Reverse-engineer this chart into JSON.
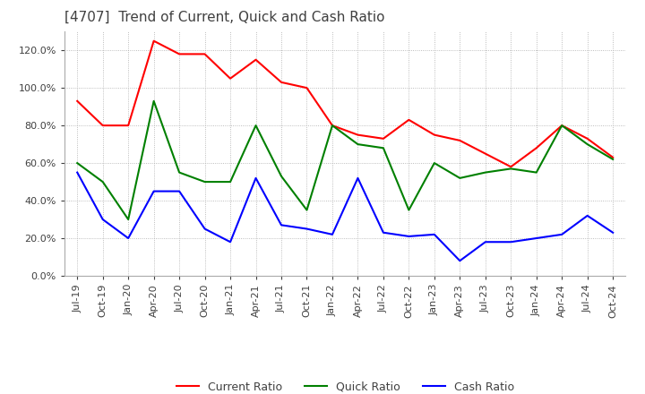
{
  "title": "[4707]  Trend of Current, Quick and Cash Ratio",
  "title_fontsize": 11,
  "title_color": "#404040",
  "background_color": "#ffffff",
  "plot_bg_color": "#ffffff",
  "grid_color": "#aaaaaa",
  "ylim": [
    0.0,
    1.3
  ],
  "yticks": [
    0.0,
    0.2,
    0.4,
    0.6,
    0.8,
    1.0,
    1.2
  ],
  "ytick_labels": [
    "0.0%",
    "20.0%",
    "40.0%",
    "60.0%",
    "80.0%",
    "100.0%",
    "120.0%"
  ],
  "x_labels": [
    "Jul-19",
    "Oct-19",
    "Jan-20",
    "Apr-20",
    "Jul-20",
    "Oct-20",
    "Jan-21",
    "Apr-21",
    "Jul-21",
    "Oct-21",
    "Jan-22",
    "Apr-22",
    "Jul-22",
    "Oct-22",
    "Jan-23",
    "Apr-23",
    "Jul-23",
    "Oct-23",
    "Jan-24",
    "Apr-24",
    "Jul-24",
    "Oct-24"
  ],
  "current_ratio": [
    0.93,
    0.8,
    0.8,
    1.25,
    1.18,
    1.18,
    1.05,
    1.15,
    1.03,
    1.0,
    0.8,
    0.75,
    0.73,
    0.83,
    0.75,
    0.72,
    0.65,
    0.58,
    0.68,
    0.8,
    0.73,
    0.63
  ],
  "quick_ratio": [
    0.6,
    0.5,
    0.3,
    0.93,
    0.55,
    0.5,
    0.5,
    0.8,
    0.53,
    0.35,
    0.8,
    0.7,
    0.68,
    0.35,
    0.6,
    0.52,
    0.55,
    0.57,
    0.55,
    0.8,
    0.7,
    0.62
  ],
  "cash_ratio": [
    0.55,
    0.3,
    0.2,
    0.45,
    0.45,
    0.25,
    0.18,
    0.52,
    0.27,
    0.25,
    0.22,
    0.52,
    0.23,
    0.21,
    0.22,
    0.08,
    0.18,
    0.18,
    0.2,
    0.22,
    0.32,
    0.23
  ],
  "current_color": "#ff0000",
  "quick_color": "#008000",
  "cash_color": "#0000ff",
  "line_width": 1.5,
  "legend_labels": [
    "Current Ratio",
    "Quick Ratio",
    "Cash Ratio"
  ]
}
